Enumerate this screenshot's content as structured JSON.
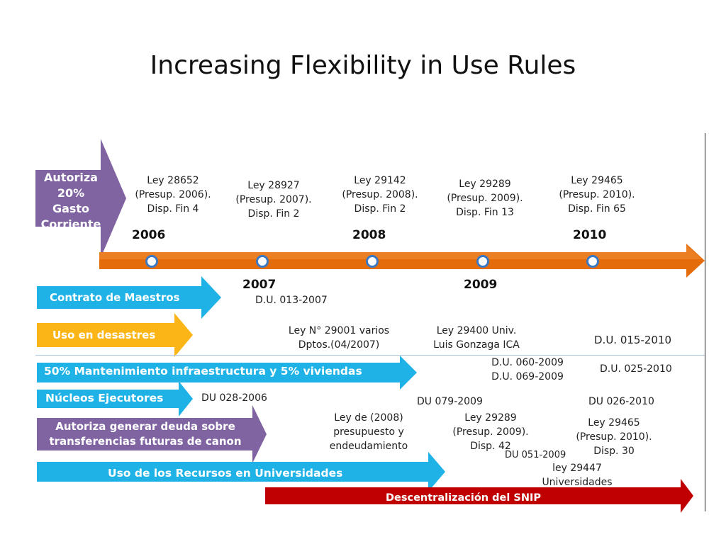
{
  "title": "Increasing Flexibility in Use Rules",
  "colors": {
    "orange": "#e46c0a",
    "purple": "#8064a2",
    "cyan": "#1fb2e6",
    "yellow": "#fbb516",
    "red": "#c00000",
    "dot_border": "#3a78c4"
  },
  "timeline": {
    "years_top": [
      "2006",
      "2008",
      "2010"
    ],
    "years_bottom": [
      "2007",
      "2009"
    ],
    "laws": [
      {
        "l1": "Ley 28652",
        "l2": "(Presup. 2006).",
        "l3": "Disp. Fin 4"
      },
      {
        "l1": "Ley 28927",
        "l2": "(Presup. 2007).",
        "l3": "Disp. Fin 2"
      },
      {
        "l1": "Ley 29142",
        "l2": "(Presup. 2008).",
        "l3": "Disp. Fin 2"
      },
      {
        "l1": "Ley 29289",
        "l2": "(Presup. 2009).",
        "l3": "Disp. Fin 13"
      },
      {
        "l1": "Ley 29465",
        "l2": "(Presup. 2010).",
        "l3": "Disp. Fin 65"
      }
    ]
  },
  "purple_top": {
    "l1": "Autoriza",
    "l2": "20%",
    "l3": "Gasto",
    "l4": "Corriente"
  },
  "rows": {
    "contrato": {
      "label": "Contrato de Maestros",
      "du": "D.U. 013-2007"
    },
    "desastres": {
      "label": "Uso en desastres",
      "n1a": "Ley N° 29001 varios",
      "n1b": "Dptos.(04/2007)",
      "n2a": "Ley 29400 Univ.",
      "n2b": "Luis Gonzaga ICA",
      "n3": "D.U. 015-2010"
    },
    "mantenimiento": {
      "label": "50% Mantenimiento infraestructura y 5% viviendas",
      "n1a": "D.U. 060-2009",
      "n1b": "D.U. 069-2009",
      "n2": "D.U. 025-2010"
    },
    "nucleos": {
      "label": "Núcleos Ejecutores",
      "n1": "DU 028-2006",
      "n2": "DU  079-2009",
      "n3": "DU  026-2010"
    },
    "deuda": {
      "label1": "Autoriza generar deuda sobre",
      "label2": "transferencias futuras de canon",
      "n1a": "Ley de (2008)",
      "n1b": "presupuesto y",
      "n1c": "endeudamiento",
      "n2a": "Ley 29289",
      "n2b": "(Presup. 2009).",
      "n2c": "Disp. 42",
      "n3a": "Ley 29465",
      "n3b": "(Presup. 2010).",
      "n3c": "Disp. 30"
    },
    "universidades": {
      "label": "Uso de los Recursos en Universidades",
      "n1": "DU  051-2009",
      "n2a": "ley 29447",
      "n2b": "Universidades"
    },
    "snip": {
      "label": "Descentralización del SNIP"
    }
  }
}
